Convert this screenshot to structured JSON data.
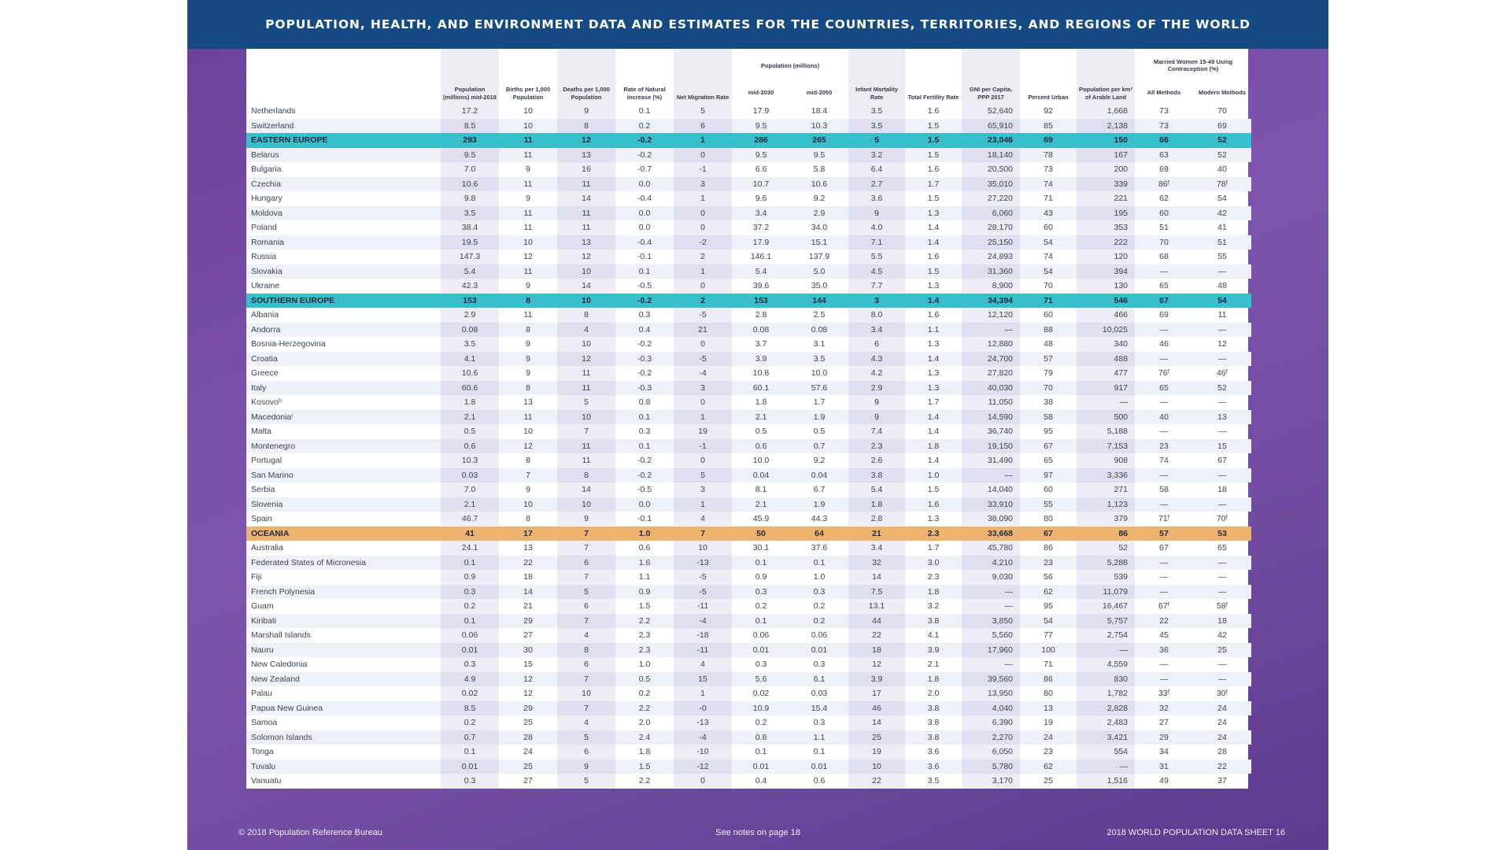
{
  "banner": {
    "title": "POPULATION, HEALTH, AND ENVIRONMENT DATA AND ESTIMATES FOR THE COUNTRIES, TERRITORIES, AND REGIONS OF THE WORLD"
  },
  "headers": {
    "pop": "Population (millions) mid-2018",
    "births": "Births per 1,000 Population",
    "deaths": "Deaths per 1,000 Population",
    "natural": "Rate of Natural Increase (%)",
    "migration": "Net Migration Rate",
    "pop_proj_group": "Population (millions)",
    "mid2030": "mid-2030",
    "mid2050": "mid-2050",
    "infant": "Infant Mortality Rate",
    "fertility": "Total Fertility Rate",
    "gni": "GNI per Capita, PPP 2017",
    "urban": "Percent Urban",
    "arable": "Population per km² of Arable Land",
    "contra_group": "Married Women 15-49 Using Contraception (%)",
    "all_methods": "All Methods",
    "modern_methods": "Modern Methods"
  },
  "rows": [
    {
      "type": "c",
      "name": "Netherlands",
      "v": [
        "17.2",
        "10",
        "9",
        "0.1",
        "5",
        "17.9",
        "18.4",
        "3.5",
        "1.6",
        "52,640",
        "92",
        "1,668",
        "73",
        "70"
      ]
    },
    {
      "type": "c",
      "name": "Switzerland",
      "v": [
        "8.5",
        "10",
        "8",
        "0.2",
        "6",
        "9.5",
        "10.3",
        "3.5",
        "1.5",
        "65,910",
        "85",
        "2,138",
        "73",
        "69"
      ]
    },
    {
      "type": "r",
      "color": "teal",
      "name": "EASTERN EUROPE",
      "v": [
        "293",
        "11",
        "12",
        "-0.2",
        "1",
        "286",
        "265",
        "5",
        "1.5",
        "23,046",
        "69",
        "150",
        "66",
        "52"
      ]
    },
    {
      "type": "c",
      "name": "Belarus",
      "v": [
        "9.5",
        "11",
        "13",
        "-0.2",
        "0",
        "9.5",
        "9.5",
        "3.2",
        "1.5",
        "18,140",
        "78",
        "167",
        "63",
        "52"
      ]
    },
    {
      "type": "c",
      "name": "Bulgaria",
      "v": [
        "7.0",
        "9",
        "16",
        "-0.7",
        "-1",
        "6.6",
        "5.8",
        "6.4",
        "1.6",
        "20,500",
        "73",
        "200",
        "69",
        "40"
      ]
    },
    {
      "type": "c",
      "name": "Czechia",
      "v": [
        "10.6",
        "11",
        "11",
        "0.0",
        "3",
        "10.7",
        "10.6",
        "2.7",
        "1.7",
        "35,010",
        "74",
        "339",
        "86ᶠ",
        "78ᶠ"
      ]
    },
    {
      "type": "c",
      "name": "Hungary",
      "v": [
        "9.8",
        "9",
        "14",
        "-0.4",
        "1",
        "9.6",
        "9.2",
        "3.6",
        "1.5",
        "27,220",
        "71",
        "221",
        "62",
        "54"
      ]
    },
    {
      "type": "c",
      "name": "Moldova",
      "v": [
        "3.5",
        "11",
        "11",
        "0.0",
        "0",
        "3.4",
        "2.9",
        "9",
        "1.3",
        "6,060",
        "43",
        "195",
        "60",
        "42"
      ]
    },
    {
      "type": "c",
      "name": "Poland",
      "v": [
        "38.4",
        "11",
        "11",
        "0.0",
        "0",
        "37.2",
        "34.0",
        "4.0",
        "1.4",
        "28,170",
        "60",
        "353",
        "51",
        "41"
      ]
    },
    {
      "type": "c",
      "name": "Romania",
      "v": [
        "19.5",
        "10",
        "13",
        "-0.4",
        "-2",
        "17.9",
        "15.1",
        "7.1",
        "1.4",
        "25,150",
        "54",
        "222",
        "70",
        "51"
      ]
    },
    {
      "type": "c",
      "name": "Russia",
      "v": [
        "147.3",
        "12",
        "12",
        "-0.1",
        "2",
        "146.1",
        "137.9",
        "5.5",
        "1.6",
        "24,893",
        "74",
        "120",
        "68",
        "55"
      ]
    },
    {
      "type": "c",
      "name": "Slovakia",
      "v": [
        "5.4",
        "11",
        "10",
        "0.1",
        "1",
        "5.4",
        "5.0",
        "4.5",
        "1.5",
        "31,360",
        "54",
        "394",
        "—",
        "—"
      ]
    },
    {
      "type": "c",
      "name": "Ukraine",
      "v": [
        "42.3",
        "9",
        "14",
        "-0.5",
        "0",
        "39.6",
        "35.0",
        "7.7",
        "1.3",
        "8,900",
        "70",
        "130",
        "65",
        "48"
      ]
    },
    {
      "type": "r",
      "color": "teal",
      "name": "SOUTHERN EUROPE",
      "v": [
        "153",
        "8",
        "10",
        "-0.2",
        "2",
        "153",
        "144",
        "3",
        "1.4",
        "34,394",
        "71",
        "546",
        "67",
        "54"
      ]
    },
    {
      "type": "c",
      "name": "Albania",
      "v": [
        "2.9",
        "11",
        "8",
        "0.3",
        "-5",
        "2.8",
        "2.5",
        "8.0",
        "1.6",
        "12,120",
        "60",
        "466",
        "69",
        "11"
      ]
    },
    {
      "type": "c",
      "name": "Andorra",
      "v": [
        "0.08",
        "8",
        "4",
        "0.4",
        "21",
        "0.08",
        "0.08",
        "3.4",
        "1.1",
        "—",
        "88",
        "10,025",
        "—",
        "—"
      ]
    },
    {
      "type": "c",
      "name": "Bosnia-Herzegovina",
      "v": [
        "3.5",
        "9",
        "10",
        "-0.2",
        "0",
        "3.7",
        "3.1",
        "6",
        "1.3",
        "12,880",
        "48",
        "340",
        "46",
        "12"
      ]
    },
    {
      "type": "c",
      "name": "Croatia",
      "v": [
        "4.1",
        "9",
        "12",
        "-0.3",
        "-5",
        "3.9",
        "3.5",
        "4.3",
        "1.4",
        "24,700",
        "57",
        "488",
        "—",
        "—"
      ]
    },
    {
      "type": "c",
      "name": "Greece",
      "v": [
        "10.6",
        "9",
        "11",
        "-0.2",
        "-4",
        "10.8",
        "10.0",
        "4.2",
        "1.3",
        "27,820",
        "79",
        "477",
        "76ᶠ",
        "46ᶠ"
      ]
    },
    {
      "type": "c",
      "name": "Italy",
      "v": [
        "60.6",
        "8",
        "11",
        "-0.3",
        "3",
        "60.1",
        "57.6",
        "2.9",
        "1.3",
        "40,030",
        "70",
        "917",
        "65",
        "52"
      ]
    },
    {
      "type": "c",
      "name": "Kosovoʰ",
      "v": [
        "1.8",
        "13",
        "5",
        "0.8",
        "0",
        "1.8",
        "1.7",
        "9",
        "1.7",
        "11,050",
        "38",
        "—",
        "—",
        "—"
      ]
    },
    {
      "type": "c",
      "name": "Macedoniaⁱ",
      "v": [
        "2.1",
        "11",
        "10",
        "0.1",
        "1",
        "2.1",
        "1.9",
        "9",
        "1.4",
        "14,590",
        "58",
        "500",
        "40",
        "13"
      ]
    },
    {
      "type": "c",
      "name": "Malta",
      "v": [
        "0.5",
        "10",
        "7",
        "0.3",
        "19",
        "0.5",
        "0.5",
        "7.4",
        "1.4",
        "36,740",
        "95",
        "5,188",
        "—",
        "—"
      ]
    },
    {
      "type": "c",
      "name": "Montenegro",
      "v": [
        "0.6",
        "12",
        "11",
        "0.1",
        "-1",
        "0.6",
        "0.7",
        "2.3",
        "1.8",
        "19,150",
        "67",
        "7,153",
        "23",
        "15"
      ]
    },
    {
      "type": "c",
      "name": "Portugal",
      "v": [
        "10.3",
        "8",
        "11",
        "-0.2",
        "0",
        "10.0",
        "9.2",
        "2.6",
        "1.4",
        "31,490",
        "65",
        "908",
        "74",
        "67"
      ]
    },
    {
      "type": "c",
      "name": "San Marino",
      "v": [
        "0.03",
        "7",
        "8",
        "-0.2",
        "5",
        "0.04",
        "0.04",
        "3.8",
        "1.0",
        "—",
        "97",
        "3,336",
        "—",
        "—"
      ]
    },
    {
      "type": "c",
      "name": "Serbia",
      "v": [
        "7.0",
        "9",
        "14",
        "-0.5",
        "3",
        "8.1",
        "6.7",
        "5.4",
        "1.5",
        "14,040",
        "60",
        "271",
        "58",
        "18"
      ]
    },
    {
      "type": "c",
      "name": "Slovenia",
      "v": [
        "2.1",
        "10",
        "10",
        "0.0",
        "1",
        "2.1",
        "1.9",
        "1.8",
        "1.6",
        "33,910",
        "55",
        "1,123",
        "—",
        "—"
      ]
    },
    {
      "type": "c",
      "name": "Spain",
      "v": [
        "46.7",
        "8",
        "9",
        "-0.1",
        "4",
        "45.9",
        "44.3",
        "2.8",
        "1.3",
        "38,090",
        "80",
        "379",
        "71ᶠ",
        "70ᶠ"
      ]
    },
    {
      "type": "r",
      "color": "orange",
      "name": "OCEANIA",
      "v": [
        "41",
        "17",
        "7",
        "1.0",
        "7",
        "50",
        "64",
        "21",
        "2.3",
        "33,668",
        "67",
        "86",
        "57",
        "53"
      ]
    },
    {
      "type": "c",
      "name": "Australia",
      "v": [
        "24.1",
        "13",
        "7",
        "0.6",
        "10",
        "30.1",
        "37.6",
        "3.4",
        "1.7",
        "45,780",
        "86",
        "52",
        "67",
        "65"
      ]
    },
    {
      "type": "c",
      "name": "Federated States of Micronesia",
      "v": [
        "0.1",
        "22",
        "6",
        "1.6",
        "-13",
        "0.1",
        "0.1",
        "32",
        "3.0",
        "4,210",
        "23",
        "5,288",
        "—",
        "—"
      ]
    },
    {
      "type": "c",
      "name": "Fiji",
      "v": [
        "0.9",
        "18",
        "7",
        "1.1",
        "-5",
        "0.9",
        "1.0",
        "14",
        "2.3",
        "9,030",
        "56",
        "539",
        "—",
        "—"
      ]
    },
    {
      "type": "c",
      "name": "French Polynesia",
      "v": [
        "0.3",
        "14",
        "5",
        "0.9",
        "-5",
        "0.3",
        "0.3",
        "7.5",
        "1.8",
        "—",
        "62",
        "11,079",
        "—",
        "—"
      ]
    },
    {
      "type": "c",
      "name": "Guam",
      "v": [
        "0.2",
        "21",
        "6",
        "1.5",
        "-11",
        "0.2",
        "0.2",
        "13.1",
        "3.2",
        "—",
        "95",
        "16,467",
        "67ᶠ",
        "58ᶠ"
      ]
    },
    {
      "type": "c",
      "name": "Kiribati",
      "v": [
        "0.1",
        "29",
        "7",
        "2.2",
        "-4",
        "0.1",
        "0.2",
        "44",
        "3.8",
        "3,850",
        "54",
        "5,757",
        "22",
        "18"
      ]
    },
    {
      "type": "c",
      "name": "Marshall Islands",
      "v": [
        "0.06",
        "27",
        "4",
        "2.3",
        "-18",
        "0.06",
        "0.06",
        "22",
        "4.1",
        "5,560",
        "77",
        "2,754",
        "45",
        "42"
      ]
    },
    {
      "type": "c",
      "name": "Nauru",
      "v": [
        "0.01",
        "30",
        "8",
        "2.3",
        "-11",
        "0.01",
        "0.01",
        "18",
        "3.9",
        "17,960",
        "100",
        "—",
        "36",
        "25"
      ]
    },
    {
      "type": "c",
      "name": "New Caledonia",
      "v": [
        "0.3",
        "15",
        "6",
        "1.0",
        "4",
        "0.3",
        "0.3",
        "12",
        "2.1",
        "—",
        "71",
        "4,559",
        "—",
        "—"
      ]
    },
    {
      "type": "c",
      "name": "New Zealand",
      "v": [
        "4.9",
        "12",
        "7",
        "0.5",
        "15",
        "5.6",
        "6.1",
        "3.9",
        "1.8",
        "39,560",
        "86",
        "830",
        "—",
        "—"
      ]
    },
    {
      "type": "c",
      "name": "Palau",
      "v": [
        "0.02",
        "12",
        "10",
        "0.2",
        "1",
        "0.02",
        "0.03",
        "17",
        "2.0",
        "13,950",
        "80",
        "1,782",
        "33ᶠ",
        "30ᶠ"
      ]
    },
    {
      "type": "c",
      "name": "Papua New Guinea",
      "v": [
        "8.5",
        "29",
        "7",
        "2.2",
        "-0",
        "10.9",
        "15.4",
        "46",
        "3.8",
        "4,040",
        "13",
        "2,828",
        "32",
        "24"
      ]
    },
    {
      "type": "c",
      "name": "Samoa",
      "v": [
        "0.2",
        "25",
        "4",
        "2.0",
        "-13",
        "0.2",
        "0.3",
        "14",
        "3.8",
        "6,390",
        "19",
        "2,483",
        "27",
        "24"
      ]
    },
    {
      "type": "c",
      "name": "Solomon Islands",
      "v": [
        "0.7",
        "28",
        "5",
        "2.4",
        "-4",
        "0.8",
        "1.1",
        "25",
        "3.8",
        "2,270",
        "24",
        "3,421",
        "29",
        "24"
      ]
    },
    {
      "type": "c",
      "name": "Tonga",
      "v": [
        "0.1",
        "24",
        "6",
        "1.8",
        "-10",
        "0.1",
        "0.1",
        "19",
        "3.6",
        "6,050",
        "23",
        "554",
        "34",
        "28"
      ]
    },
    {
      "type": "c",
      "name": "Tuvalu",
      "v": [
        "0.01",
        "25",
        "9",
        "1.5",
        "-12",
        "0.01",
        "0.01",
        "10",
        "3.6",
        "5,780",
        "62",
        "—",
        "31",
        "22"
      ]
    },
    {
      "type": "c",
      "name": "Vanuatu",
      "v": [
        "0.3",
        "27",
        "5",
        "2.2",
        "0",
        "0.4",
        "0.6",
        "22",
        "3.5",
        "3,170",
        "25",
        "1,516",
        "49",
        "37"
      ]
    }
  ],
  "footer": {
    "left": "© 2018 Population Reference Bureau",
    "center": "See notes on page 18",
    "right": "2018 WORLD POPULATION DATA SHEET   16"
  }
}
